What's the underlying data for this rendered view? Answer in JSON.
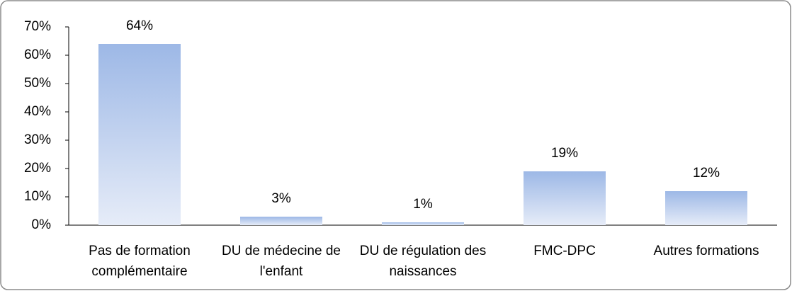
{
  "chart_data": {
    "type": "bar",
    "categories": [
      "Pas de formation complémentaire",
      "DU de médecine de l'enfant",
      "DU de régulation des naissances",
      "FMC-DPC",
      "Autres formations"
    ],
    "values": [
      64,
      3,
      1,
      19,
      12
    ],
    "value_labels": [
      "64%",
      "3%",
      "1%",
      "19%",
      "12%"
    ],
    "color": "#9db8e6",
    "ylim": [
      0,
      70
    ],
    "yticks": [
      {
        "value": 0,
        "label": "0%"
      },
      {
        "value": 10,
        "label": "10%"
      },
      {
        "value": 20,
        "label": "20%"
      },
      {
        "value": 30,
        "label": "30%"
      },
      {
        "value": 40,
        "label": "40%"
      },
      {
        "value": 50,
        "label": "50%"
      },
      {
        "value": 60,
        "label": "60%"
      },
      {
        "value": 70,
        "label": "70%"
      }
    ],
    "grid": false
  }
}
